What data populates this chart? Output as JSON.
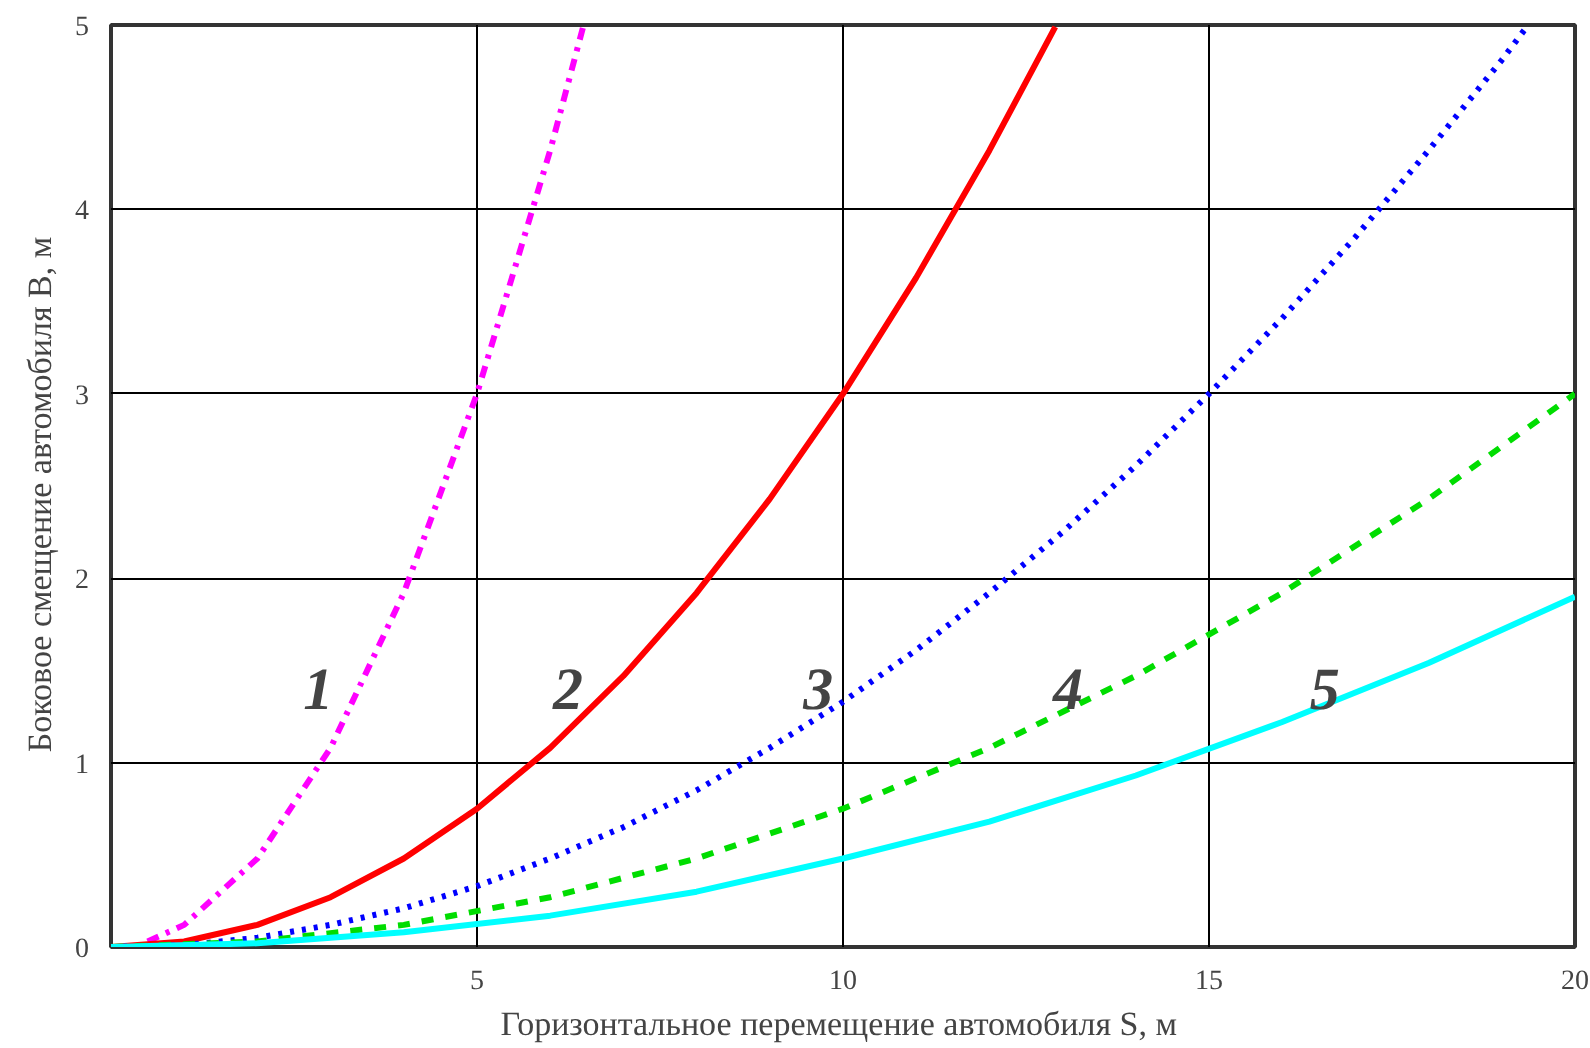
{
  "chart_data": {
    "type": "line",
    "xlabel": "Горизонтальное перемещение автомобиля  S, м",
    "ylabel": "Боковое смещение автомобиля  B,  м",
    "xlim": [
      0,
      20
    ],
    "ylim": [
      0,
      5
    ],
    "xticks": [
      {
        "value": 0,
        "label": null
      },
      5,
      10,
      15,
      20
    ],
    "yticks": [
      0,
      1,
      2,
      3,
      4,
      5
    ],
    "grid": true,
    "series": [
      {
        "color": "#ff00ff",
        "line_style": "dashdot",
        "x": [
          0.5,
          1,
          2,
          3,
          4,
          5,
          6,
          6.45
        ],
        "values": [
          0.03,
          0.12,
          0.48,
          1.08,
          1.92,
          3,
          4.32,
          4.99
        ]
      },
      {
        "color": "#ff0000",
        "line_style": "solid",
        "x": [
          0,
          1,
          2,
          3,
          4,
          5,
          6,
          7,
          8,
          9,
          10,
          11,
          12,
          12.9
        ],
        "values": [
          0,
          0.03,
          0.12,
          0.27,
          0.48,
          0.75,
          1.08,
          1.47,
          1.92,
          2.43,
          3,
          3.63,
          4.32,
          4.99
        ]
      },
      {
        "color": "#0000ff",
        "line_style": "dotted",
        "x": [
          0,
          1,
          2,
          3,
          4,
          5,
          6,
          7,
          8,
          9,
          10,
          11,
          12,
          13,
          14,
          15,
          16,
          17,
          18,
          19,
          19.36
        ],
        "values": [
          0,
          0.01,
          0.05,
          0.12,
          0.21,
          0.33,
          0.48,
          0.65,
          0.85,
          1.08,
          1.33,
          1.61,
          1.92,
          2.25,
          2.61,
          3,
          3.41,
          3.85,
          4.32,
          4.81,
          5
        ]
      },
      {
        "color": "#00dd00",
        "line_style": "dashed",
        "x": [
          0,
          2,
          4,
          6,
          8,
          10,
          12,
          14,
          16,
          18,
          20
        ],
        "values": [
          0,
          0.03,
          0.12,
          0.27,
          0.48,
          0.75,
          1.08,
          1.47,
          1.92,
          2.43,
          3
        ]
      },
      {
        "color": "#00ffff",
        "line_style": "solid",
        "x": [
          0,
          2,
          4,
          6,
          8,
          10,
          12,
          14,
          16,
          18,
          20
        ],
        "values": [
          0,
          0.02,
          0.08,
          0.17,
          0.3,
          0.48,
          0.68,
          0.93,
          1.22,
          1.54,
          1.9
        ]
      }
    ],
    "annotations": [
      {
        "text": "1",
        "x": 3.42,
        "y": 1.4
      },
      {
        "text": "2",
        "x": 6.83,
        "y": 1.4
      },
      {
        "text": "3",
        "x": 10.25,
        "y": 1.4
      },
      {
        "text": "4",
        "x": 13.66,
        "y": 1.4
      },
      {
        "text": "5",
        "x": 17.17,
        "y": 1.4
      }
    ]
  }
}
